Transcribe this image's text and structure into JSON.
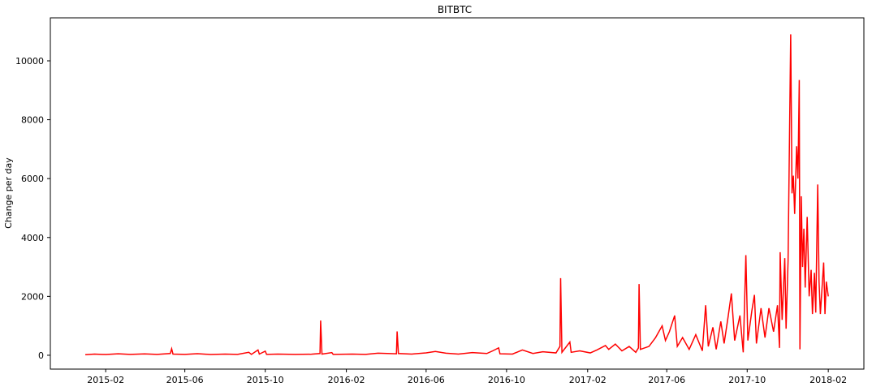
{
  "chart_data": {
    "type": "line",
    "title": "BITBTC",
    "ylabel": "Change per day",
    "x": [
      "2015-01-01",
      "2015-01-15",
      "2015-02-01",
      "2015-02-20",
      "2015-03-10",
      "2015-04-01",
      "2015-04-20",
      "2015-05-10",
      "2015-05-12",
      "2015-05-14",
      "2015-06-01",
      "2015-06-20",
      "2015-07-10",
      "2015-08-01",
      "2015-08-20",
      "2015-09-06",
      "2015-09-10",
      "2015-09-20",
      "2015-09-22",
      "2015-10-01",
      "2015-10-03",
      "2015-10-20",
      "2015-11-15",
      "2015-12-10",
      "2015-12-23",
      "2015-12-24",
      "2015-12-26",
      "2016-01-10",
      "2016-01-12",
      "2016-02-10",
      "2016-03-01",
      "2016-03-20",
      "2016-04-17",
      "2016-04-18",
      "2016-04-20",
      "2016-05-10",
      "2016-06-01",
      "2016-06-15",
      "2016-07-01",
      "2016-07-20",
      "2016-08-10",
      "2016-09-01",
      "2016-09-10",
      "2016-09-19",
      "2016-09-21",
      "2016-10-10",
      "2016-10-25",
      "2016-11-10",
      "2016-11-25",
      "2016-12-15",
      "2016-12-21",
      "2016-12-22",
      "2016-12-24",
      "2017-01-05",
      "2017-01-07",
      "2017-01-20",
      "2017-02-05",
      "2017-02-15",
      "2017-02-28",
      "2017-03-05",
      "2017-03-15",
      "2017-03-25",
      "2017-04-05",
      "2017-04-15",
      "2017-04-19",
      "2017-04-20",
      "2017-04-22",
      "2017-05-05",
      "2017-05-15",
      "2017-05-25",
      "2017-05-30",
      "2017-06-05",
      "2017-06-13",
      "2017-06-17",
      "2017-06-25",
      "2017-07-05",
      "2017-07-15",
      "2017-07-25",
      "2017-07-30",
      "2017-08-03",
      "2017-08-10",
      "2017-08-15",
      "2017-08-22",
      "2017-08-27",
      "2017-09-02",
      "2017-09-07",
      "2017-09-12",
      "2017-09-20",
      "2017-09-25",
      "2017-09-29",
      "2017-10-02",
      "2017-10-08",
      "2017-10-12",
      "2017-10-15",
      "2017-10-22",
      "2017-10-28",
      "2017-11-03",
      "2017-11-10",
      "2017-11-16",
      "2017-11-19",
      "2017-11-20",
      "2017-11-23",
      "2017-11-27",
      "2017-11-29",
      "2017-12-02",
      "2017-12-06",
      "2017-12-08",
      "2017-12-10",
      "2017-12-12",
      "2017-12-15",
      "2017-12-17",
      "2017-12-19",
      "2017-12-20",
      "2017-12-22",
      "2017-12-24",
      "2017-12-26",
      "2017-12-28",
      "2017-12-31",
      "2018-01-03",
      "2018-01-06",
      "2018-01-08",
      "2018-01-11",
      "2018-01-13",
      "2018-01-16",
      "2018-01-18",
      "2018-01-20",
      "2018-01-25",
      "2018-01-27",
      "2018-01-29",
      "2018-02-01"
    ],
    "series": [
      {
        "name": "BITBTC",
        "color": "#ff0000",
        "values": [
          20,
          40,
          25,
          50,
          30,
          45,
          30,
          60,
          220,
          40,
          30,
          55,
          25,
          40,
          30,
          100,
          30,
          180,
          40,
          140,
          30,
          40,
          30,
          35,
          60,
          1180,
          40,
          90,
          30,
          40,
          30,
          70,
          50,
          810,
          60,
          40,
          80,
          130,
          70,
          40,
          90,
          60,
          150,
          250,
          50,
          40,
          180,
          60,
          120,
          80,
          300,
          2620,
          100,
          450,
          100,
          150,
          80,
          180,
          330,
          200,
          380,
          150,
          300,
          100,
          250,
          2420,
          200,
          300,
          600,
          1000,
          500,
          800,
          1350,
          300,
          600,
          200,
          700,
          150,
          1700,
          300,
          950,
          200,
          1150,
          400,
          1300,
          2100,
          500,
          1350,
          100,
          3400,
          500,
          1500,
          2050,
          400,
          1600,
          600,
          1600,
          800,
          1700,
          250,
          3500,
          1200,
          3300,
          900,
          3200,
          10900,
          5500,
          6100,
          4800,
          7100,
          6000,
          9350,
          200,
          5400,
          3000,
          4300,
          2300,
          4700,
          2000,
          2900,
          1400,
          2800,
          1450,
          5800,
          2500,
          1400,
          3150,
          1400,
          2500,
          2000
        ]
      }
    ],
    "xlim": [
      "2014-11-09",
      "2018-03-27"
    ],
    "xticks": [
      "2015-02",
      "2015-06",
      "2015-10",
      "2016-02",
      "2016-06",
      "2016-10",
      "2017-02",
      "2017-06",
      "2017-10",
      "2018-02"
    ],
    "ylim": [
      -470,
      11460
    ],
    "yticks": [
      0,
      2000,
      4000,
      6000,
      8000,
      10000
    ]
  }
}
